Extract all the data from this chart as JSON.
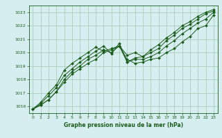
{
  "title": "Graphe pression niveau de la mer (hPa)",
  "bg_color": "#d6eef0",
  "grid_color": "#aaccbb",
  "line_color": "#1a5c1a",
  "xlim": [
    -0.5,
    23.5
  ],
  "ylim": [
    1015.5,
    1023.5
  ],
  "yticks": [
    1016,
    1017,
    1018,
    1019,
    1020,
    1021,
    1022,
    1023
  ],
  "xticks": [
    0,
    1,
    2,
    3,
    4,
    5,
    6,
    7,
    8,
    9,
    10,
    11,
    12,
    13,
    14,
    15,
    16,
    17,
    18,
    19,
    20,
    21,
    22,
    23
  ],
  "series": [
    [
      1015.8,
      1016.1,
      1016.5,
      1017.1,
      1017.8,
      1018.4,
      1018.8,
      1019.2,
      1019.5,
      1020.0,
      1020.2,
      1020.5,
      1019.5,
      1019.2,
      1019.3,
      1019.5,
      1019.6,
      1020.0,
      1020.3,
      1020.8,
      1021.2,
      1021.8,
      1022.0,
      1022.8
    ],
    [
      1015.8,
      1016.1,
      1016.5,
      1017.1,
      1018.0,
      1018.6,
      1019.0,
      1019.5,
      1019.8,
      1020.2,
      1020.0,
      1020.5,
      1019.3,
      1019.5,
      1019.5,
      1019.7,
      1020.0,
      1020.5,
      1020.9,
      1021.4,
      1021.8,
      1022.2,
      1022.5,
      1023.0
    ],
    [
      1015.8,
      1016.2,
      1016.8,
      1017.4,
      1018.3,
      1018.8,
      1019.3,
      1019.7,
      1020.1,
      1020.5,
      1019.9,
      1020.7,
      1019.3,
      1019.6,
      1019.7,
      1020.0,
      1020.3,
      1020.9,
      1021.3,
      1021.8,
      1022.1,
      1022.5,
      1022.9,
      1023.1
    ],
    [
      1015.8,
      1016.3,
      1017.0,
      1017.6,
      1018.7,
      1019.2,
      1019.6,
      1020.0,
      1020.4,
      1020.1,
      1020.3,
      1020.5,
      1019.8,
      1020.0,
      1019.7,
      1020.2,
      1020.6,
      1021.1,
      1021.5,
      1022.0,
      1022.3,
      1022.7,
      1023.0,
      1023.2
    ]
  ]
}
